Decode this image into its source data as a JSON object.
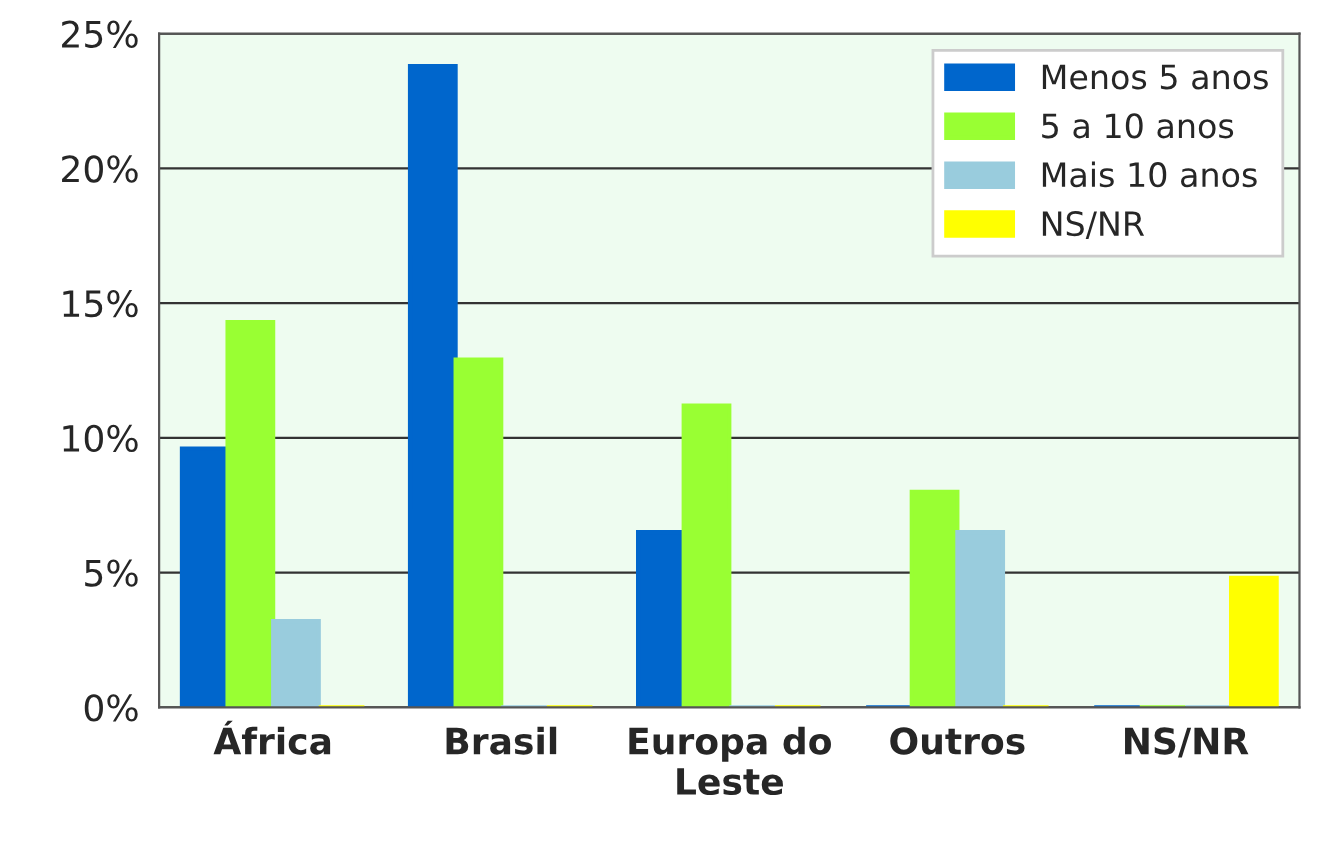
{
  "chart_data": {
    "type": "bar",
    "categories": [
      "África",
      "Brasil",
      "Europa do\nLeste",
      "Outros",
      "NS/NR"
    ],
    "series": [
      {
        "name": "Menos 5 anos",
        "color": "#0066cc",
        "values": [
          9.6,
          23.8,
          6.5,
          0,
          0
        ]
      },
      {
        "name": "5 a 10 anos",
        "color": "#99ff33",
        "values": [
          14.3,
          12.9,
          11.2,
          8.0,
          0
        ]
      },
      {
        "name": "Mais 10 anos",
        "color": "#99ccdd",
        "values": [
          3.2,
          0,
          0,
          6.5,
          0
        ]
      },
      {
        "name": "NS/NR",
        "color": "#ffff00",
        "values": [
          0,
          0,
          0,
          0,
          4.8
        ]
      }
    ],
    "ylim": [
      0,
      25
    ],
    "yticks": [
      {
        "value": 0,
        "label": "0%"
      },
      {
        "value": 5,
        "label": "5%"
      },
      {
        "value": 10,
        "label": "10%"
      },
      {
        "value": 15,
        "label": "15%"
      },
      {
        "value": 20,
        "label": "20%"
      },
      {
        "value": 25,
        "label": "25%"
      }
    ],
    "grid": "y",
    "legend": "top right"
  }
}
